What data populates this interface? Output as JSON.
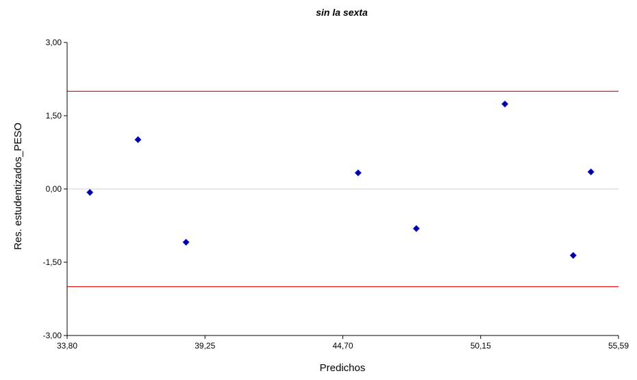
{
  "chart_data": {
    "type": "scatter",
    "title": "sin la sexta",
    "xlabel": "Predichos",
    "ylabel": "Res. estudentizados_PESO",
    "xlim": [
      33.8,
      55.59
    ],
    "ylim": [
      -3.0,
      3.0
    ],
    "xticks": [
      "33,80",
      "39,25",
      "44,70",
      "50,15",
      "55,59"
    ],
    "yticks": [
      "3,00",
      "1,50",
      "0,00",
      "-1,50",
      "-3,00"
    ],
    "reference_lines": [
      {
        "y": 2.0,
        "color": "#e00000"
      },
      {
        "y": 0.0,
        "color": "#d9d9d9"
      },
      {
        "y": -2.0,
        "color": "#e00000"
      }
    ],
    "points": [
      {
        "x": 34.7,
        "y": -0.07
      },
      {
        "x": 36.6,
        "y": 1.01
      },
      {
        "x": 38.5,
        "y": -1.09
      },
      {
        "x": 45.3,
        "y": 0.33
      },
      {
        "x": 47.6,
        "y": -0.81
      },
      {
        "x": 51.1,
        "y": 1.74
      },
      {
        "x": 53.8,
        "y": -1.36
      },
      {
        "x": 54.5,
        "y": 0.35
      }
    ],
    "point_color": "#00008b",
    "grid": false
  }
}
